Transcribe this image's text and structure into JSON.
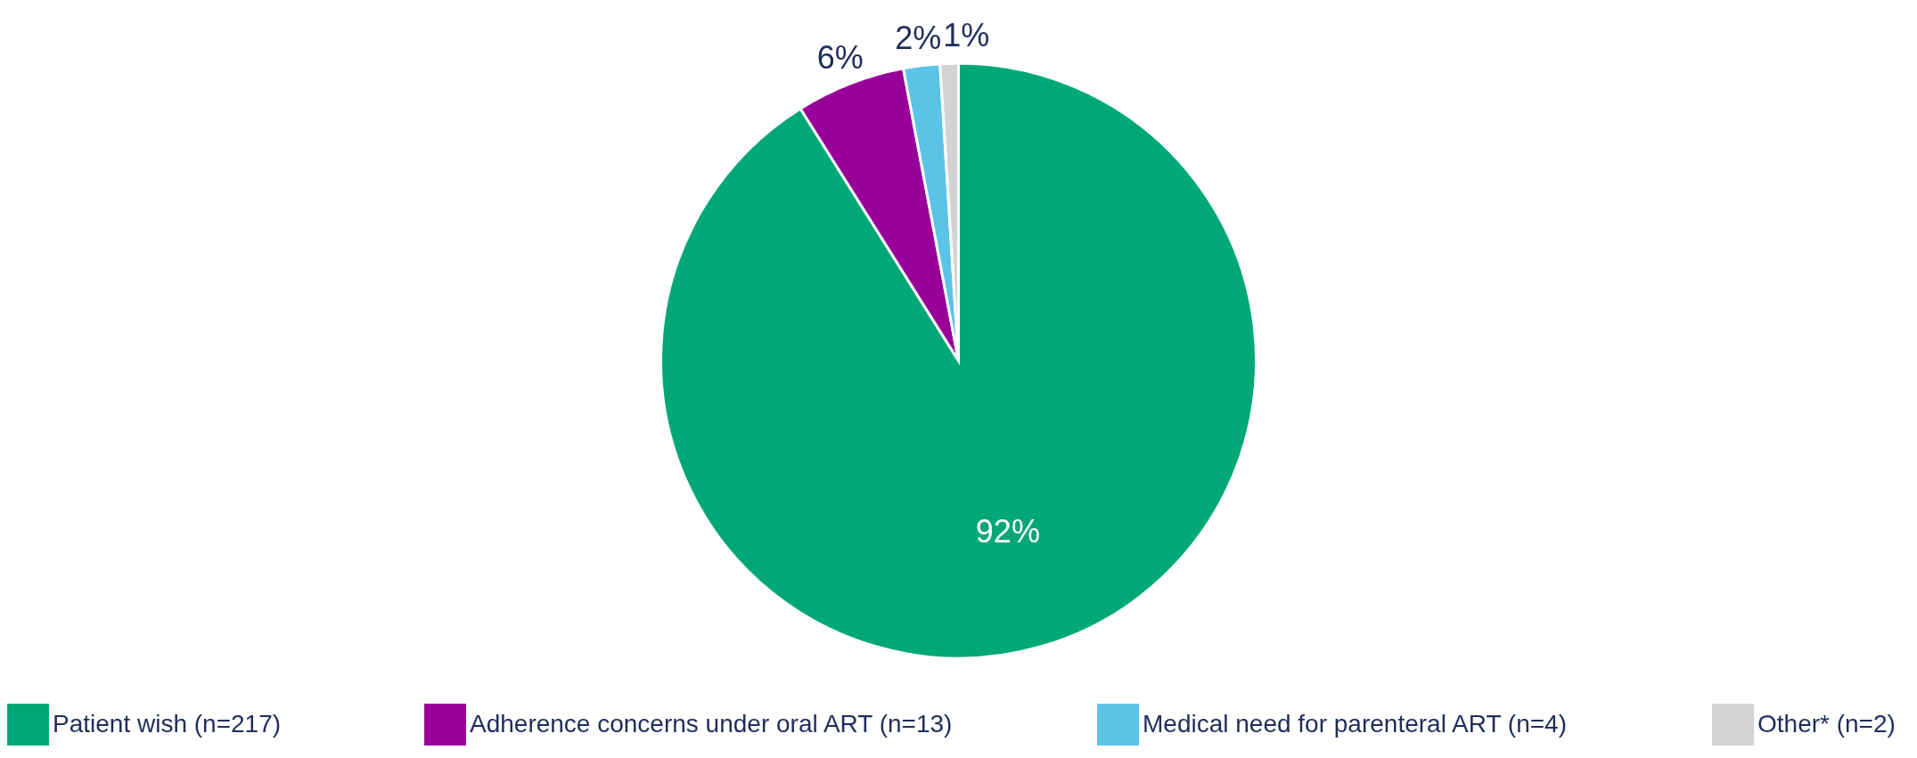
{
  "chart_data": {
    "type": "pie",
    "categories": [
      "Patient wish (n=217)",
      "Adherence concerns under oral ART (n=13)",
      "Medical need for parenteral ART (n=4)",
      "Other* (n=2)"
    ],
    "values": [
      92,
      6,
      2,
      1
    ],
    "colors": [
      "#00a878",
      "#990099",
      "#5bc4e6",
      "#d3d3d3"
    ],
    "value_labels": [
      "92%",
      "6%",
      "2%",
      "1%"
    ],
    "legend": "bottom"
  }
}
